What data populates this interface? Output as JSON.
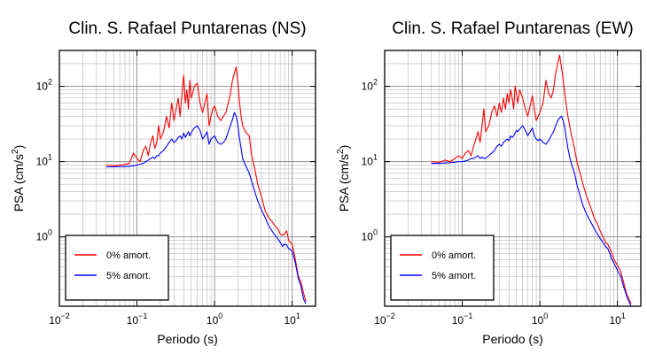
{
  "chart_data": [
    {
      "type": "line",
      "title": "Clin. S. Rafael Puntarenas (NS)",
      "xlabel": "Periodo (s)",
      "ylabel_main": "PSA (cm/s",
      "ylabel_sup": "2",
      "ylabel_close": ")",
      "xscale": "log",
      "yscale": "log",
      "xlim": [
        0.01,
        20
      ],
      "ylim": [
        0.12,
        300
      ],
      "xticks": [
        {
          "value": 0.01,
          "base": "10",
          "exp": "−2"
        },
        {
          "value": 0.1,
          "base": "10",
          "exp": "−1"
        },
        {
          "value": 1,
          "base": "10",
          "exp": "0"
        },
        {
          "value": 10,
          "base": "10",
          "exp": "1"
        }
      ],
      "yticks": [
        {
          "value": 1,
          "base": "10",
          "exp": "0"
        },
        {
          "value": 10,
          "base": "10",
          "exp": "1"
        },
        {
          "value": 100,
          "base": "10",
          "exp": "2"
        }
      ],
      "grid": true,
      "legend_position": "bottom-left",
      "series": [
        {
          "name": "0% amort.",
          "color": "#ff0000",
          "x": [
            0.04,
            0.05,
            0.06,
            0.07,
            0.08,
            0.09,
            0.1,
            0.11,
            0.12,
            0.13,
            0.14,
            0.15,
            0.16,
            0.17,
            0.18,
            0.19,
            0.2,
            0.22,
            0.24,
            0.26,
            0.28,
            0.3,
            0.32,
            0.34,
            0.36,
            0.38,
            0.4,
            0.42,
            0.44,
            0.46,
            0.48,
            0.5,
            0.52,
            0.55,
            0.6,
            0.65,
            0.7,
            0.75,
            0.8,
            0.85,
            0.9,
            0.95,
            1.0,
            1.1,
            1.2,
            1.3,
            1.4,
            1.5,
            1.6,
            1.7,
            1.8,
            1.9,
            2.0,
            2.1,
            2.2,
            2.3,
            2.5,
            2.8,
            3.0,
            3.3,
            3.6,
            4.0,
            4.5,
            5.0,
            5.5,
            6.0,
            6.5,
            7.0,
            7.5,
            8.0,
            8.5,
            9.0,
            10.0,
            11.0,
            12.0,
            13.0,
            14.0,
            15.0
          ],
          "y": [
            9,
            8.8,
            9,
            9.2,
            9.5,
            13,
            11,
            10,
            14,
            16,
            12,
            18,
            22,
            15,
            18,
            30,
            20,
            25,
            40,
            28,
            60,
            35,
            50,
            70,
            40,
            80,
            140,
            60,
            90,
            50,
            120,
            70,
            80,
            100,
            110,
            60,
            45,
            60,
            80,
            30,
            40,
            50,
            55,
            40,
            35,
            40,
            45,
            60,
            80,
            120,
            150,
            180,
            110,
            60,
            40,
            30,
            25,
            22,
            12,
            8,
            5,
            3.5,
            2.2,
            1.8,
            1.6,
            1.4,
            1.3,
            1.1,
            1.05,
            1.1,
            1.2,
            0.9,
            0.8,
            0.5,
            0.3,
            0.25,
            0.18,
            0.14
          ]
        },
        {
          "name": "5% amort.",
          "color": "#0000ff",
          "x": [
            0.04,
            0.05,
            0.06,
            0.07,
            0.08,
            0.09,
            0.1,
            0.11,
            0.12,
            0.13,
            0.14,
            0.15,
            0.16,
            0.17,
            0.18,
            0.19,
            0.2,
            0.22,
            0.24,
            0.26,
            0.28,
            0.3,
            0.32,
            0.34,
            0.36,
            0.38,
            0.4,
            0.42,
            0.44,
            0.46,
            0.48,
            0.5,
            0.52,
            0.55,
            0.6,
            0.65,
            0.7,
            0.75,
            0.8,
            0.85,
            0.9,
            0.95,
            1.0,
            1.1,
            1.2,
            1.3,
            1.4,
            1.5,
            1.6,
            1.7,
            1.8,
            1.9,
            2.0,
            2.1,
            2.2,
            2.3,
            2.5,
            2.8,
            3.0,
            3.3,
            3.6,
            4.0,
            4.5,
            5.0,
            5.5,
            6.0,
            6.5,
            7.0,
            7.5,
            8.0,
            8.5,
            9.0,
            10.0,
            11.0,
            12.0,
            13.0,
            14.0,
            15.0
          ],
          "y": [
            8.5,
            8.5,
            8.6,
            8.6,
            8.7,
            8.8,
            9,
            9.2,
            9.5,
            10,
            10.5,
            11,
            11.5,
            11,
            12,
            12,
            13,
            14,
            16,
            18,
            20,
            18,
            19,
            21,
            22,
            20,
            24,
            21,
            23,
            25,
            22,
            24,
            26,
            28,
            30,
            26,
            20,
            22,
            25,
            17,
            20,
            21,
            22,
            18,
            17,
            18,
            20,
            25,
            30,
            36,
            45,
            40,
            30,
            20,
            15,
            11,
            9,
            7,
            5.5,
            4,
            3,
            2.3,
            1.8,
            1.4,
            1.2,
            1.05,
            0.95,
            0.85,
            0.75,
            0.8,
            0.78,
            0.7,
            0.65,
            0.45,
            0.28,
            0.22,
            0.15,
            0.13
          ]
        }
      ]
    },
    {
      "type": "line",
      "title": "Clin. S. Rafael Puntarenas (EW)",
      "xlabel": "Periodo (s)",
      "ylabel_main": "PSA (cm/s",
      "ylabel_sup": "2",
      "ylabel_close": ")",
      "xscale": "log",
      "yscale": "log",
      "xlim": [
        0.01,
        20
      ],
      "ylim": [
        0.12,
        300
      ],
      "xticks": [
        {
          "value": 0.01,
          "base": "10",
          "exp": "−2"
        },
        {
          "value": 0.1,
          "base": "10",
          "exp": "−1"
        },
        {
          "value": 1,
          "base": "10",
          "exp": "0"
        },
        {
          "value": 10,
          "base": "10",
          "exp": "1"
        }
      ],
      "yticks": [
        {
          "value": 1,
          "base": "10",
          "exp": "0"
        },
        {
          "value": 10,
          "base": "10",
          "exp": "1"
        },
        {
          "value": 100,
          "base": "10",
          "exp": "2"
        }
      ],
      "grid": true,
      "legend_position": "bottom-left",
      "series": [
        {
          "name": "0% amort.",
          "color": "#ff0000",
          "x": [
            0.04,
            0.05,
            0.06,
            0.07,
            0.08,
            0.09,
            0.1,
            0.11,
            0.12,
            0.13,
            0.14,
            0.15,
            0.16,
            0.17,
            0.18,
            0.19,
            0.2,
            0.22,
            0.24,
            0.26,
            0.28,
            0.3,
            0.32,
            0.34,
            0.36,
            0.38,
            0.4,
            0.42,
            0.44,
            0.46,
            0.48,
            0.5,
            0.52,
            0.55,
            0.6,
            0.65,
            0.7,
            0.75,
            0.8,
            0.85,
            0.9,
            0.95,
            1.0,
            1.1,
            1.2,
            1.3,
            1.4,
            1.5,
            1.6,
            1.7,
            1.8,
            1.9,
            2.0,
            2.1,
            2.2,
            2.3,
            2.5,
            2.8,
            3.0,
            3.3,
            3.6,
            4.0,
            4.5,
            5.0,
            5.5,
            6.0,
            6.5,
            7.0,
            7.5,
            8.0,
            8.5,
            9.0,
            10.0,
            11.0,
            12.0,
            13.0,
            14.0,
            15.0
          ],
          "y": [
            10,
            9.8,
            10.5,
            10,
            11,
            12,
            11,
            13,
            14,
            12,
            16,
            20,
            25,
            18,
            30,
            50,
            25,
            30,
            45,
            55,
            40,
            60,
            45,
            70,
            50,
            80,
            60,
            90,
            70,
            50,
            100,
            80,
            60,
            90,
            70,
            50,
            40,
            55,
            75,
            50,
            35,
            40,
            45,
            60,
            120,
            80,
            70,
            90,
            150,
            200,
            260,
            180,
            120,
            80,
            55,
            40,
            25,
            15,
            10,
            7,
            5,
            3.5,
            2.5,
            1.8,
            1.5,
            1.2,
            1,
            0.85,
            0.8,
            0.7,
            0.6,
            0.5,
            0.42,
            0.35,
            0.25,
            0.18,
            0.15,
            0.13
          ]
        },
        {
          "name": "5% amort.",
          "color": "#0000ff",
          "x": [
            0.04,
            0.05,
            0.06,
            0.07,
            0.08,
            0.09,
            0.1,
            0.11,
            0.12,
            0.13,
            0.14,
            0.15,
            0.16,
            0.17,
            0.18,
            0.19,
            0.2,
            0.22,
            0.24,
            0.26,
            0.28,
            0.3,
            0.32,
            0.34,
            0.36,
            0.38,
            0.4,
            0.42,
            0.44,
            0.46,
            0.48,
            0.5,
            0.52,
            0.55,
            0.6,
            0.65,
            0.7,
            0.75,
            0.8,
            0.85,
            0.9,
            0.95,
            1.0,
            1.1,
            1.2,
            1.3,
            1.4,
            1.5,
            1.6,
            1.7,
            1.8,
            1.9,
            2.0,
            2.1,
            2.2,
            2.3,
            2.5,
            2.8,
            3.0,
            3.3,
            3.6,
            4.0,
            4.5,
            5.0,
            5.5,
            6.0,
            6.5,
            7.0,
            7.5,
            8.0,
            8.5,
            9.0,
            10.0,
            11.0,
            12.0,
            13.0,
            14.0,
            15.0
          ],
          "y": [
            9.5,
            9.5,
            9.6,
            9.7,
            9.8,
            10,
            10,
            10.2,
            10.5,
            11,
            11,
            11.5,
            12,
            11,
            11.5,
            11,
            11,
            12,
            13,
            14,
            16,
            17,
            16,
            18,
            19,
            20,
            19,
            22,
            21,
            22,
            24,
            26,
            25,
            27,
            30,
            26,
            22,
            25,
            28,
            22,
            20,
            19,
            20,
            18,
            17,
            19,
            22,
            25,
            30,
            35,
            38,
            40,
            35,
            28,
            20,
            15,
            10,
            7,
            5,
            3.5,
            2.6,
            2,
            1.6,
            1.3,
            1.1,
            0.95,
            0.85,
            0.75,
            0.7,
            0.6,
            0.5,
            0.45,
            0.36,
            0.3,
            0.22,
            0.17,
            0.14,
            0.12
          ]
        }
      ]
    }
  ]
}
